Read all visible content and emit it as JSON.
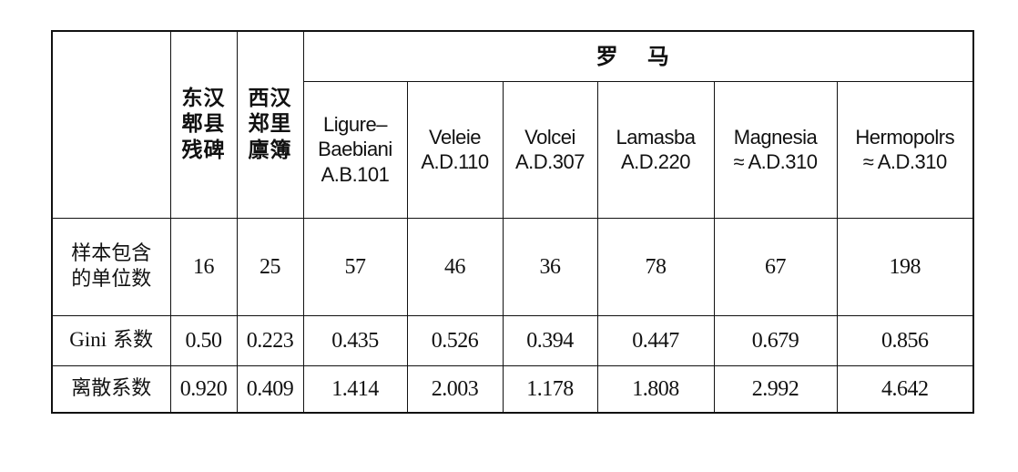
{
  "table": {
    "group_header": "罗  马",
    "han_columns": [
      {
        "lines": [
          "东汉",
          "郫县",
          "残碑"
        ]
      },
      {
        "lines": [
          "西汉",
          "郑里",
          "廪簿"
        ]
      }
    ],
    "roman_columns": [
      {
        "lines": [
          "Ligure–",
          "Baebiani",
          "A.B.101"
        ]
      },
      {
        "lines": [
          "Veleie",
          "A.D.110"
        ]
      },
      {
        "lines": [
          "Volcei",
          "A.D.307"
        ]
      },
      {
        "lines": [
          "Lamasba",
          "A.D.220"
        ]
      },
      {
        "lines": [
          "Magnesia",
          "≈ A.D.310"
        ]
      },
      {
        "lines": [
          "Hermopolrs",
          "≈ A.D.310"
        ]
      }
    ],
    "rows": [
      {
        "label_lines": [
          "样本包含",
          "的单位数"
        ],
        "values": [
          "16",
          "25",
          "57",
          "46",
          "36",
          "78",
          "67",
          "198"
        ]
      },
      {
        "label_latin": "Gini",
        "label_rest": " 系数",
        "values": [
          "0.50",
          "0.223",
          "0.435",
          "0.526",
          "0.394",
          "0.447",
          "0.679",
          "0.856"
        ]
      },
      {
        "label_lines": [
          "离散系数"
        ],
        "values": [
          "0.920",
          "0.409",
          "1.414",
          "2.003",
          "1.178",
          "1.808",
          "2.992",
          "4.642"
        ]
      }
    ]
  }
}
